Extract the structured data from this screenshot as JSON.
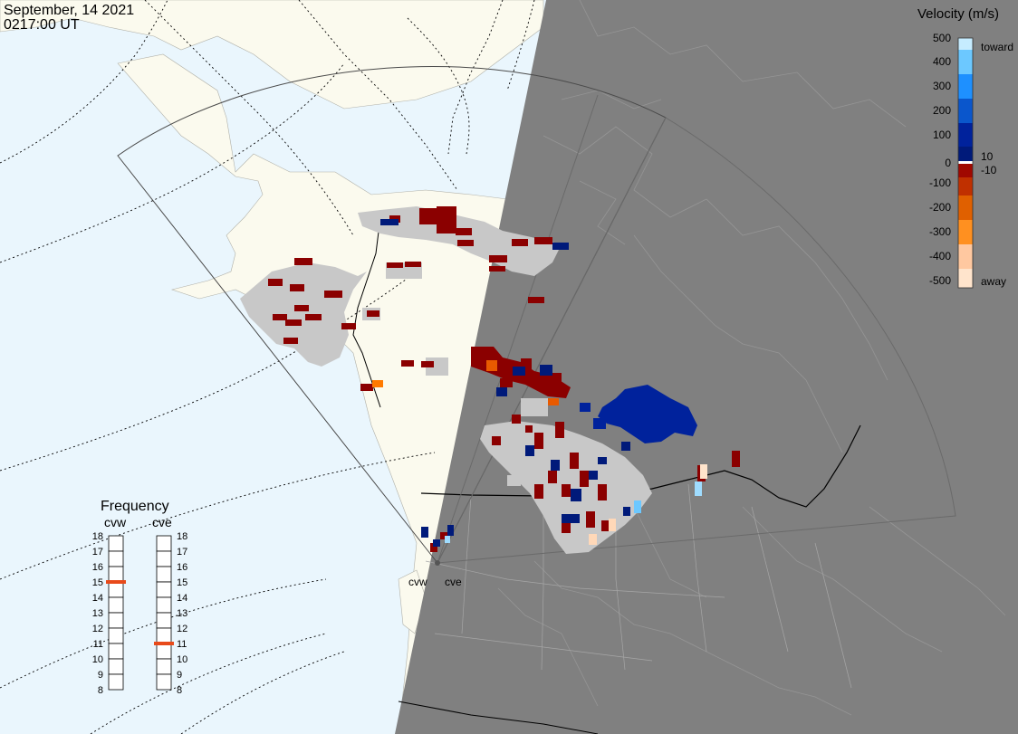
{
  "header": {
    "date": "September, 14 2021",
    "time": "0217:00 UT"
  },
  "colorbar": {
    "title": "Velocity (m/s)",
    "ticks": [
      "500",
      "400",
      "300",
      "200",
      "100",
      "10",
      "0",
      "-10",
      "-100",
      "-200",
      "-300",
      "-400",
      "-500"
    ],
    "toward_label": "toward",
    "away_label": "away",
    "colors": [
      "#c6ecff",
      "#6cc8ff",
      "#1e90ff",
      "#0a56cc",
      "#00229c",
      "#001a7a",
      "#8b0000",
      "#a00800",
      "#c03000",
      "#e06000",
      "#ff9020",
      "#ffc8a0",
      "#ffe4cc"
    ]
  },
  "radars": {
    "west_label": "cvw",
    "east_label": "cve"
  },
  "frequency": {
    "title": "Frequency",
    "left_label": "cvw",
    "right_label": "cve",
    "levels": [
      "18",
      "17",
      "16",
      "15",
      "14",
      "13",
      "12",
      "11",
      "10",
      "9",
      "8"
    ],
    "cvw_value": 15,
    "cve_value": 11,
    "marker_color": "#e84a1a"
  },
  "map_colors": {
    "ocean_day": "#eaf6fd",
    "land_day": "#fbfaee",
    "night": "#808080",
    "ground_scatter": "#c8c8c8"
  }
}
